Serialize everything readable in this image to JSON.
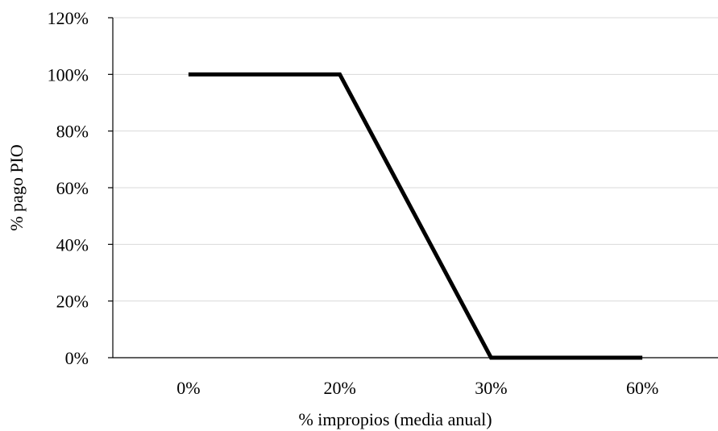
{
  "chart_data": {
    "type": "line",
    "categories": [
      "0%",
      "20%",
      "30%",
      "60%"
    ],
    "y_ticks": [
      "0%",
      "20%",
      "40%",
      "60%",
      "80%",
      "100%",
      "120%"
    ],
    "ylim": [
      0,
      120
    ],
    "xlabel": "% impropios (media anual)",
    "ylabel": "% pago PIO",
    "grid": true,
    "legend": "none",
    "series": [
      {
        "values": [
          100,
          100,
          0,
          0
        ],
        "color": "#000000"
      }
    ]
  }
}
